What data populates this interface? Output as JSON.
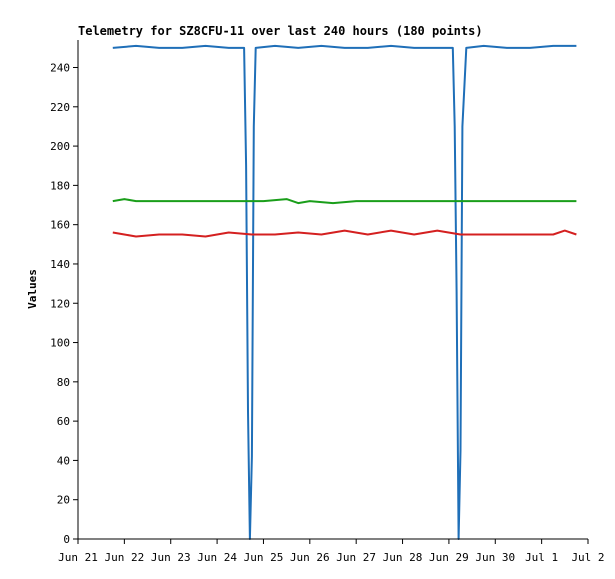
{
  "chart_data": {
    "type": "line",
    "title": "Telemetry for SZ8CFU-11 over last 240 hours (180 points)",
    "xlabel": "",
    "ylabel": "Values",
    "x_tick_labels": [
      "Jun 21",
      "Jun 22",
      "Jun 23",
      "Jun 24",
      "Jun 25",
      "Jun 26",
      "Jun 27",
      "Jun 28",
      "Jun 29",
      "Jun 30",
      "Jul 1",
      "Jul 2"
    ],
    "y_tick_labels": [
      "0",
      "20",
      "40",
      "60",
      "80",
      "100",
      "120",
      "140",
      "160",
      "180",
      "200",
      "220",
      "240"
    ],
    "xlim": [
      "Jun 21",
      "Jul 2"
    ],
    "ylim": [
      0,
      254
    ],
    "grid": false,
    "legend": "none",
    "series": [
      {
        "color": "#1f6fb8",
        "points": [
          [
            "Jun 21 18:00",
            250
          ],
          [
            "Jun 22 06:00",
            251
          ],
          [
            "Jun 22 18:00",
            250
          ],
          [
            "Jun 23 06:00",
            250
          ],
          [
            "Jun 23 18:00",
            251
          ],
          [
            "Jun 24 06:00",
            250
          ],
          [
            "Jun 24 14:00",
            250
          ],
          [
            "Jun 24 15:00",
            190
          ],
          [
            "Jun 24 16:00",
            65
          ],
          [
            "Jun 24 17:00",
            0
          ],
          [
            "Jun 24 18:00",
            42
          ],
          [
            "Jun 24 19:00",
            210
          ],
          [
            "Jun 24 20:00",
            250
          ],
          [
            "Jun 25 06:00",
            251
          ],
          [
            "Jun 25 18:00",
            250
          ],
          [
            "Jun 26 06:00",
            251
          ],
          [
            "Jun 26 18:00",
            250
          ],
          [
            "Jun 27 06:00",
            250
          ],
          [
            "Jun 27 18:00",
            251
          ],
          [
            "Jun 28 06:00",
            250
          ],
          [
            "Jun 28 18:00",
            250
          ],
          [
            "Jun 29 02:00",
            250
          ],
          [
            "Jun 29 03:00",
            210
          ],
          [
            "Jun 29 04:00",
            126
          ],
          [
            "Jun 29 05:00",
            0
          ],
          [
            "Jun 29 06:00",
            45
          ],
          [
            "Jun 29 07:00",
            210
          ],
          [
            "Jun 29 09:00",
            250
          ],
          [
            "Jun 29 18:00",
            251
          ],
          [
            "Jun 30 06:00",
            250
          ],
          [
            "Jun 30 18:00",
            250
          ],
          [
            "Jul 1 06:00",
            251
          ],
          [
            "Jul 1 18:00",
            251
          ]
        ]
      },
      {
        "color": "#1a9e1a",
        "points": [
          [
            "Jun 21 18:00",
            172
          ],
          [
            "Jun 22 00:00",
            173
          ],
          [
            "Jun 22 06:00",
            172
          ],
          [
            "Jun 23 00:00",
            172
          ],
          [
            "Jun 24 00:00",
            172
          ],
          [
            "Jun 25 00:00",
            172
          ],
          [
            "Jun 25 12:00",
            173
          ],
          [
            "Jun 25 18:00",
            171
          ],
          [
            "Jun 26 00:00",
            172
          ],
          [
            "Jun 26 12:00",
            171
          ],
          [
            "Jun 27 00:00",
            172
          ],
          [
            "Jun 28 00:00",
            172
          ],
          [
            "Jun 29 00:00",
            172
          ],
          [
            "Jun 30 00:00",
            172
          ],
          [
            "Jul 1 00:00",
            172
          ],
          [
            "Jul 1 18:00",
            172
          ]
        ]
      },
      {
        "color": "#d42020",
        "points": [
          [
            "Jun 21 18:00",
            156
          ],
          [
            "Jun 22 00:00",
            155
          ],
          [
            "Jun 22 06:00",
            154
          ],
          [
            "Jun 22 18:00",
            155
          ],
          [
            "Jun 23 06:00",
            155
          ],
          [
            "Jun 23 18:00",
            154
          ],
          [
            "Jun 24 06:00",
            156
          ],
          [
            "Jun 24 18:00",
            155
          ],
          [
            "Jun 25 06:00",
            155
          ],
          [
            "Jun 25 18:00",
            156
          ],
          [
            "Jun 26 06:00",
            155
          ],
          [
            "Jun 26 18:00",
            157
          ],
          [
            "Jun 27 06:00",
            155
          ],
          [
            "Jun 27 18:00",
            157
          ],
          [
            "Jun 28 06:00",
            155
          ],
          [
            "Jun 28 18:00",
            157
          ],
          [
            "Jun 29 06:00",
            155
          ],
          [
            "Jun 29 18:00",
            155
          ],
          [
            "Jun 30 06:00",
            155
          ],
          [
            "Jun 30 18:00",
            155
          ],
          [
            "Jul 1 06:00",
            155
          ],
          [
            "Jul 1 12:00",
            157
          ],
          [
            "Jul 1 18:00",
            155
          ]
        ]
      }
    ]
  }
}
